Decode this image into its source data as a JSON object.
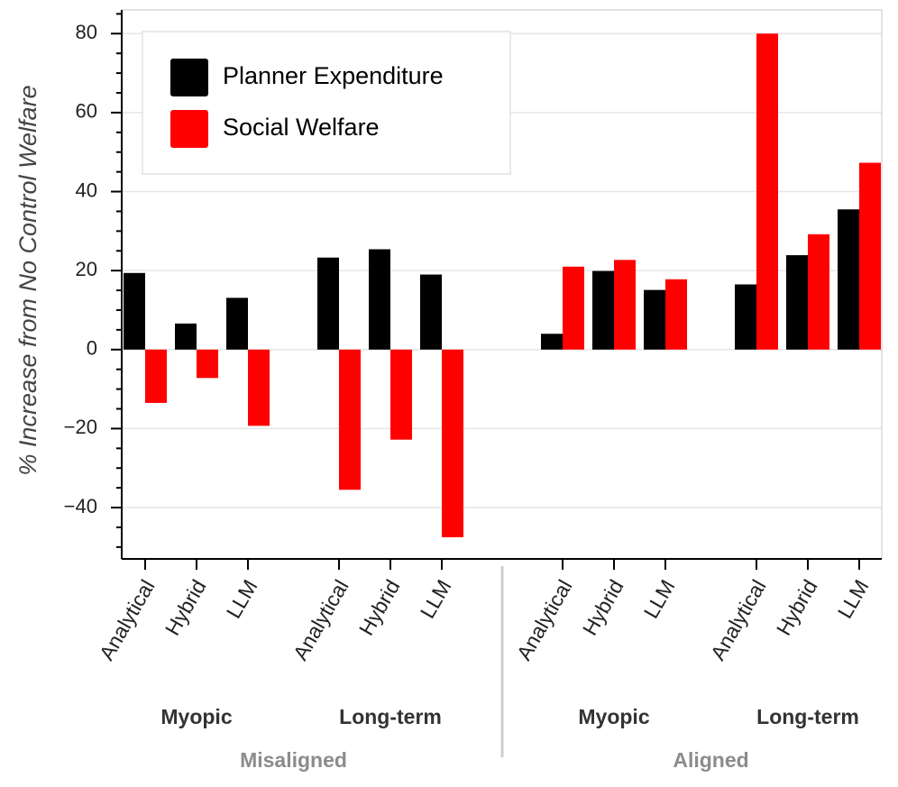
{
  "chart_data": {
    "type": "bar",
    "ylabel": "% Increase from No Control Welfare",
    "ylim": [
      -53,
      86
    ],
    "yticks": [
      -40,
      -20,
      0,
      20,
      40,
      60,
      80
    ],
    "ytick_labels": [
      "−40",
      "−20",
      "0",
      "20",
      "40",
      "60",
      "80"
    ],
    "legend_position": "top-left",
    "grid": true,
    "series": [
      {
        "name": "Planner Expenditure",
        "color": "#000000",
        "values": [
          19.4,
          6.6,
          13.1,
          23.3,
          25.4,
          19.0,
          4.0,
          19.9,
          15.1,
          16.5,
          23.9,
          35.5
        ]
      },
      {
        "name": "Social Welfare",
        "color": "#ff0000",
        "values": [
          -13.5,
          -7.2,
          -19.3,
          -35.5,
          -22.8,
          -47.5,
          21.0,
          22.7,
          17.8,
          80.0,
          29.2,
          47.3
        ]
      }
    ],
    "groups": [
      {
        "alignment": "Misaligned",
        "horizon": "Myopic",
        "categories": [
          "Analytical",
          "Hybrid",
          "LLM"
        ]
      },
      {
        "alignment": "Misaligned",
        "horizon": "Long-term",
        "categories": [
          "Analytical",
          "Hybrid",
          "LLM"
        ]
      },
      {
        "alignment": "Aligned",
        "horizon": "Myopic",
        "categories": [
          "Analytical",
          "Hybrid",
          "LLM"
        ]
      },
      {
        "alignment": "Aligned",
        "horizon": "Long-term",
        "categories": [
          "Analytical",
          "Hybrid",
          "LLM"
        ]
      }
    ],
    "alignment_labels": [
      "Misaligned",
      "Aligned"
    ]
  }
}
